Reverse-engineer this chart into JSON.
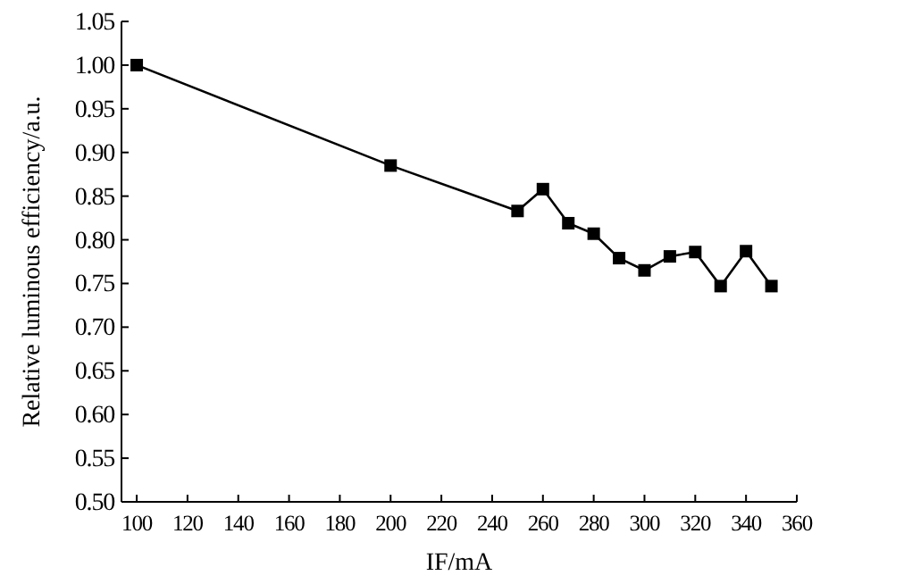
{
  "chart_data": {
    "type": "line",
    "xlabel": "IF/mA",
    "ylabel": "Relative luminous efficiency/a.u.",
    "x": [
      100,
      200,
      250,
      260,
      270,
      280,
      290,
      300,
      310,
      320,
      330,
      340,
      350
    ],
    "series": [
      {
        "color": "#000000",
        "values": [
          1.0,
          0.885,
          0.833,
          0.858,
          0.819,
          0.807,
          0.779,
          0.765,
          0.781,
          0.786,
          0.747,
          0.787,
          0.747
        ]
      }
    ],
    "xlim": [
      94,
      360
    ],
    "xticks": [
      100,
      120,
      140,
      160,
      180,
      200,
      220,
      240,
      260,
      280,
      300,
      320,
      340,
      360
    ],
    "ylim": [
      0.5,
      1.05
    ],
    "yticks": [
      {
        "value": 0.5,
        "label": "0.50"
      },
      {
        "value": 0.55,
        "label": "0.55"
      },
      {
        "value": 0.6,
        "label": "0.60"
      },
      {
        "value": 0.65,
        "label": "0.65"
      },
      {
        "value": 0.7,
        "label": "0.70"
      },
      {
        "value": 0.75,
        "label": "0.75"
      },
      {
        "value": 0.8,
        "label": "0.80"
      },
      {
        "value": 0.85,
        "label": "0.85"
      },
      {
        "value": 0.9,
        "label": "0.90"
      },
      {
        "value": 0.95,
        "label": "0.95"
      },
      {
        "value": 1.0,
        "label": "1.00"
      },
      {
        "value": 1.05,
        "label": "1.05"
      }
    ],
    "marker": "square",
    "line_style": "solid"
  }
}
